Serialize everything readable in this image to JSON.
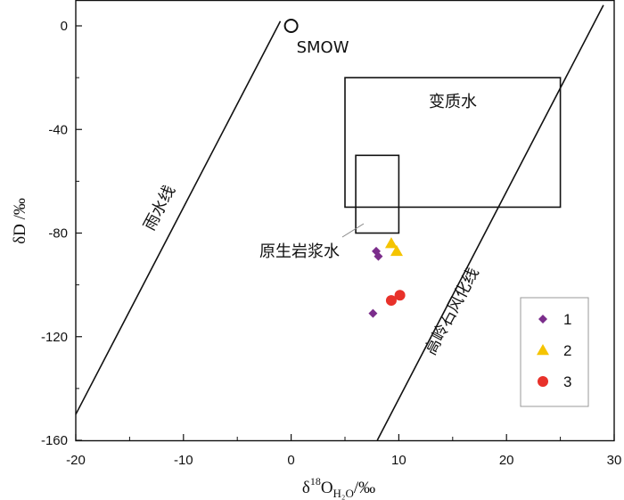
{
  "chart_data": {
    "type": "scatter",
    "xlabel_parts": [
      "δ",
      "18",
      "O",
      "H₂O",
      "/‰"
    ],
    "ylabel": "δD /‰",
    "xlim": [
      -20,
      30
    ],
    "ylim": [
      -160,
      10
    ],
    "x_ticks": [
      -20,
      -10,
      0,
      10,
      20,
      30
    ],
    "y_ticks": [
      0,
      -40,
      -80,
      -120,
      -160
    ],
    "x_tick_labels": [
      "-20",
      "-10",
      "0",
      "10",
      "20",
      "30"
    ],
    "y_tick_labels": [
      "0",
      "-40",
      "-80",
      "-120",
      "-160"
    ],
    "series": [
      {
        "name": "1",
        "marker": "diamond",
        "color": "#7B2D8B",
        "points": [
          [
            7.9,
            -87
          ],
          [
            8.1,
            -89
          ],
          [
            7.6,
            -111
          ]
        ]
      },
      {
        "name": "2",
        "marker": "triangle",
        "color": "#F5C400",
        "points": [
          [
            9.3,
            -84
          ],
          [
            9.8,
            -87
          ]
        ]
      },
      {
        "name": "3",
        "marker": "circle",
        "color": "#E8312A",
        "points": [
          [
            9.3,
            -106
          ],
          [
            10.1,
            -104
          ]
        ]
      }
    ],
    "lines": [
      {
        "name": "meteoric-water-line",
        "label": "雨水线",
        "from": [
          -20,
          -150
        ],
        "to": [
          -1.0,
          1.8
        ]
      },
      {
        "name": "kaolinite-weathering-line",
        "label": "高岭石风化线",
        "from": [
          8.0,
          -160
        ],
        "to": [
          29.0,
          8.0
        ]
      }
    ],
    "boxes": [
      {
        "name": "metamorphic-water-box",
        "label": "变质水",
        "x": [
          5,
          25
        ],
        "y": [
          -70,
          -20
        ]
      },
      {
        "name": "magmatic-water-box",
        "label": "原生岩浆水",
        "x": [
          6,
          10
        ],
        "y": [
          -80,
          -50
        ]
      }
    ],
    "smow": {
      "label": "SMOW",
      "x": 0,
      "y": 0
    },
    "legend": {
      "position": "bottom-right",
      "entries": [
        "1",
        "2",
        "3"
      ]
    }
  }
}
